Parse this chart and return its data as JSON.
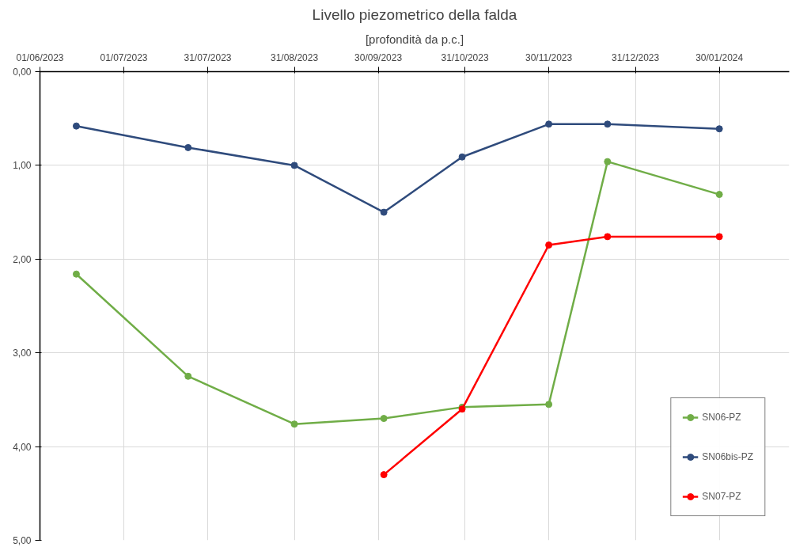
{
  "chart_data": {
    "type": "line",
    "title": "Livello piezometrico della falda",
    "subtitle": "[profondità da p.c.]",
    "xlim": [
      "2023-06-01",
      "2024-02-24"
    ],
    "xticks": [
      {
        "value": "2023-06-01",
        "label": "01/06/2023"
      },
      {
        "value": "2023-07-01",
        "label": "01/07/2023"
      },
      {
        "value": "2023-07-31",
        "label": "31/07/2023"
      },
      {
        "value": "2023-08-31",
        "label": "31/08/2023"
      },
      {
        "value": "2023-09-30",
        "label": "30/09/2023"
      },
      {
        "value": "2023-10-31",
        "label": "31/10/2023"
      },
      {
        "value": "2023-11-30",
        "label": "30/11/2023"
      },
      {
        "value": "2023-12-31",
        "label": "31/12/2023"
      },
      {
        "value": "2024-01-30",
        "label": "30/01/2024"
      }
    ],
    "ylim": [
      5,
      0
    ],
    "yticks": [
      {
        "value": 0,
        "label": "0,00"
      },
      {
        "value": 1,
        "label": "1,00"
      },
      {
        "value": 2,
        "label": "2,00"
      },
      {
        "value": 3,
        "label": "3,00"
      },
      {
        "value": 4,
        "label": "4,00"
      },
      {
        "value": 5,
        "label": "5,00"
      }
    ],
    "grid": true,
    "legend": "bottom right",
    "marker": "circle",
    "line_style": "solid",
    "series": [
      {
        "name": "SN06-PZ",
        "color": "#70ad47",
        "x": [
          "2023-06-14",
          "2023-07-24",
          "2023-08-31",
          "2023-10-02",
          "2023-10-30",
          "2023-11-30",
          "2023-12-21",
          "2024-01-30"
        ],
        "values": [
          2.16,
          3.25,
          3.76,
          3.7,
          3.58,
          3.55,
          0.96,
          1.31
        ]
      },
      {
        "name": "SN06bis-PZ",
        "color": "#2f4b7c",
        "x": [
          "2023-06-14",
          "2023-07-24",
          "2023-08-31",
          "2023-10-02",
          "2023-10-30",
          "2023-11-30",
          "2023-12-21",
          "2024-01-30"
        ],
        "values": [
          0.58,
          0.81,
          1.0,
          1.5,
          0.91,
          0.56,
          0.56,
          0.61
        ]
      },
      {
        "name": "SN07-PZ",
        "color": "#ff0000",
        "x": [
          "2023-10-02",
          "2023-10-30",
          "2023-11-30",
          "2023-12-21",
          "2024-01-30"
        ],
        "values": [
          4.3,
          3.6,
          1.85,
          1.76,
          1.76
        ]
      }
    ]
  }
}
